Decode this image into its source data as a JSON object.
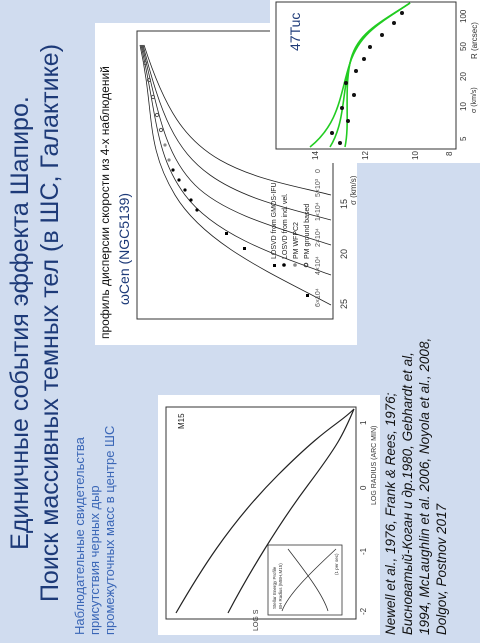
{
  "slide": {
    "title_line1": "Единичные события эффекта Шапиро.",
    "title_line2": "Поиск массивных темных тел (в ШС, Галактике)",
    "note": "Наблюдательные свидетельства присутствия черных дыр промежуточных масс в центре ШС",
    "references": "Newell et al., 1976, Frank & Rees, 1976; Бисноватый-Коган и др.1980, Gebhardt et al, 1994, McLaughlin et al. 2006, Noyola et al., 2008, Dolgov, Postnov 2017"
  },
  "omega_cen": {
    "header": "профиль дисперсии скорости из 4-х наблюдений",
    "name": "ωCen (NGC5139)",
    "ylabel": "σ (km/s)",
    "yticks": [
      "25",
      "20",
      "15",
      "10",
      "5",
      "0"
    ],
    "model_labels": [
      "6×10⁴",
      "4×10⁴",
      "2×10⁴",
      "1×10⁴",
      "5×10³",
      "0"
    ],
    "legend": [
      "LOSVD from GMOS-IFU",
      "LOSVD from ind. vel.",
      "PM WFPC2",
      "PM ground based"
    ]
  },
  "m15": {
    "name": "M15",
    "xlabel": "LOG RADIUS (ARC MIN)",
    "ylabel": "LOG S",
    "xticks": [
      "-2",
      "-1",
      "0",
      "1"
    ],
    "inset_labels": [
      "Stellar Energy Profile",
      "BH Radius (MBH,M15)",
      "(1 per sec)"
    ]
  },
  "tuc47": {
    "name": "47Tuc",
    "ylabel": "σ (km/s)",
    "xlabel": "R (arcsec)",
    "yticks": [
      "14",
      "12",
      "10",
      "8"
    ],
    "xticks": [
      "5",
      "10",
      "20",
      "50",
      "100"
    ]
  },
  "colors": {
    "title": "#1d3a78",
    "note": "#3a66b6",
    "background": "#d0dcef",
    "model_curve": "#22cc22"
  }
}
